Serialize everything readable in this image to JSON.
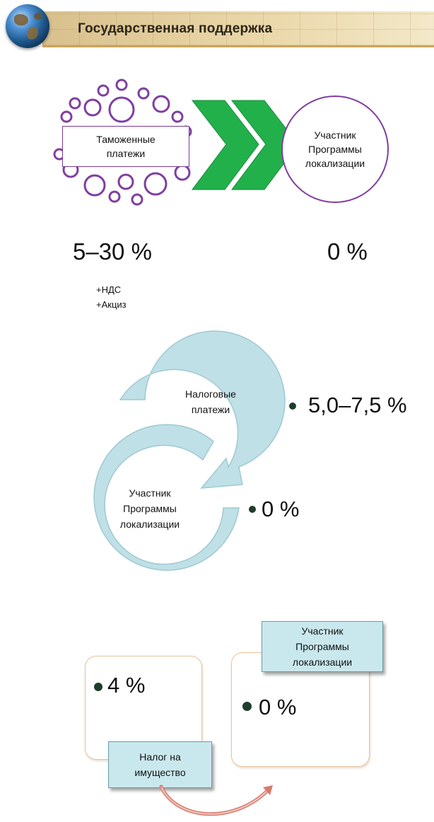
{
  "header": {
    "title": "Государственная поддержка"
  },
  "customs": {
    "box_label": "Таможенные\nплатежи",
    "participant_label": "Участник\nПрограммы\nлокализации",
    "rate_before": "5–30 %",
    "rate_after": "0 %",
    "notes": [
      "+НДС",
      "+Акциз"
    ],
    "colors": {
      "circle_stroke": "#7f3fa1",
      "arrow_fill": "#22b04b"
    }
  },
  "tax": {
    "label": "Налоговые\nплатежи",
    "rate": "5,0–7,5 %",
    "participant_label": "Участник\nПрограммы\nлокализации",
    "participant_rate": "0 %",
    "colors": {
      "ring_fill": "#bfe0e6",
      "ring_stroke": "#9fc9d2",
      "dot": "#1e3d2c"
    }
  },
  "property": {
    "label": "Налог на\nимущество",
    "rate": "4 %",
    "participant_label": "Участник\nПрограммы\nлокализации",
    "participant_rate": "0 %",
    "colors": {
      "box_fill": "#c9e8ee",
      "frame_stroke": "#e9c39a",
      "arrow": "#d67a6e"
    }
  }
}
